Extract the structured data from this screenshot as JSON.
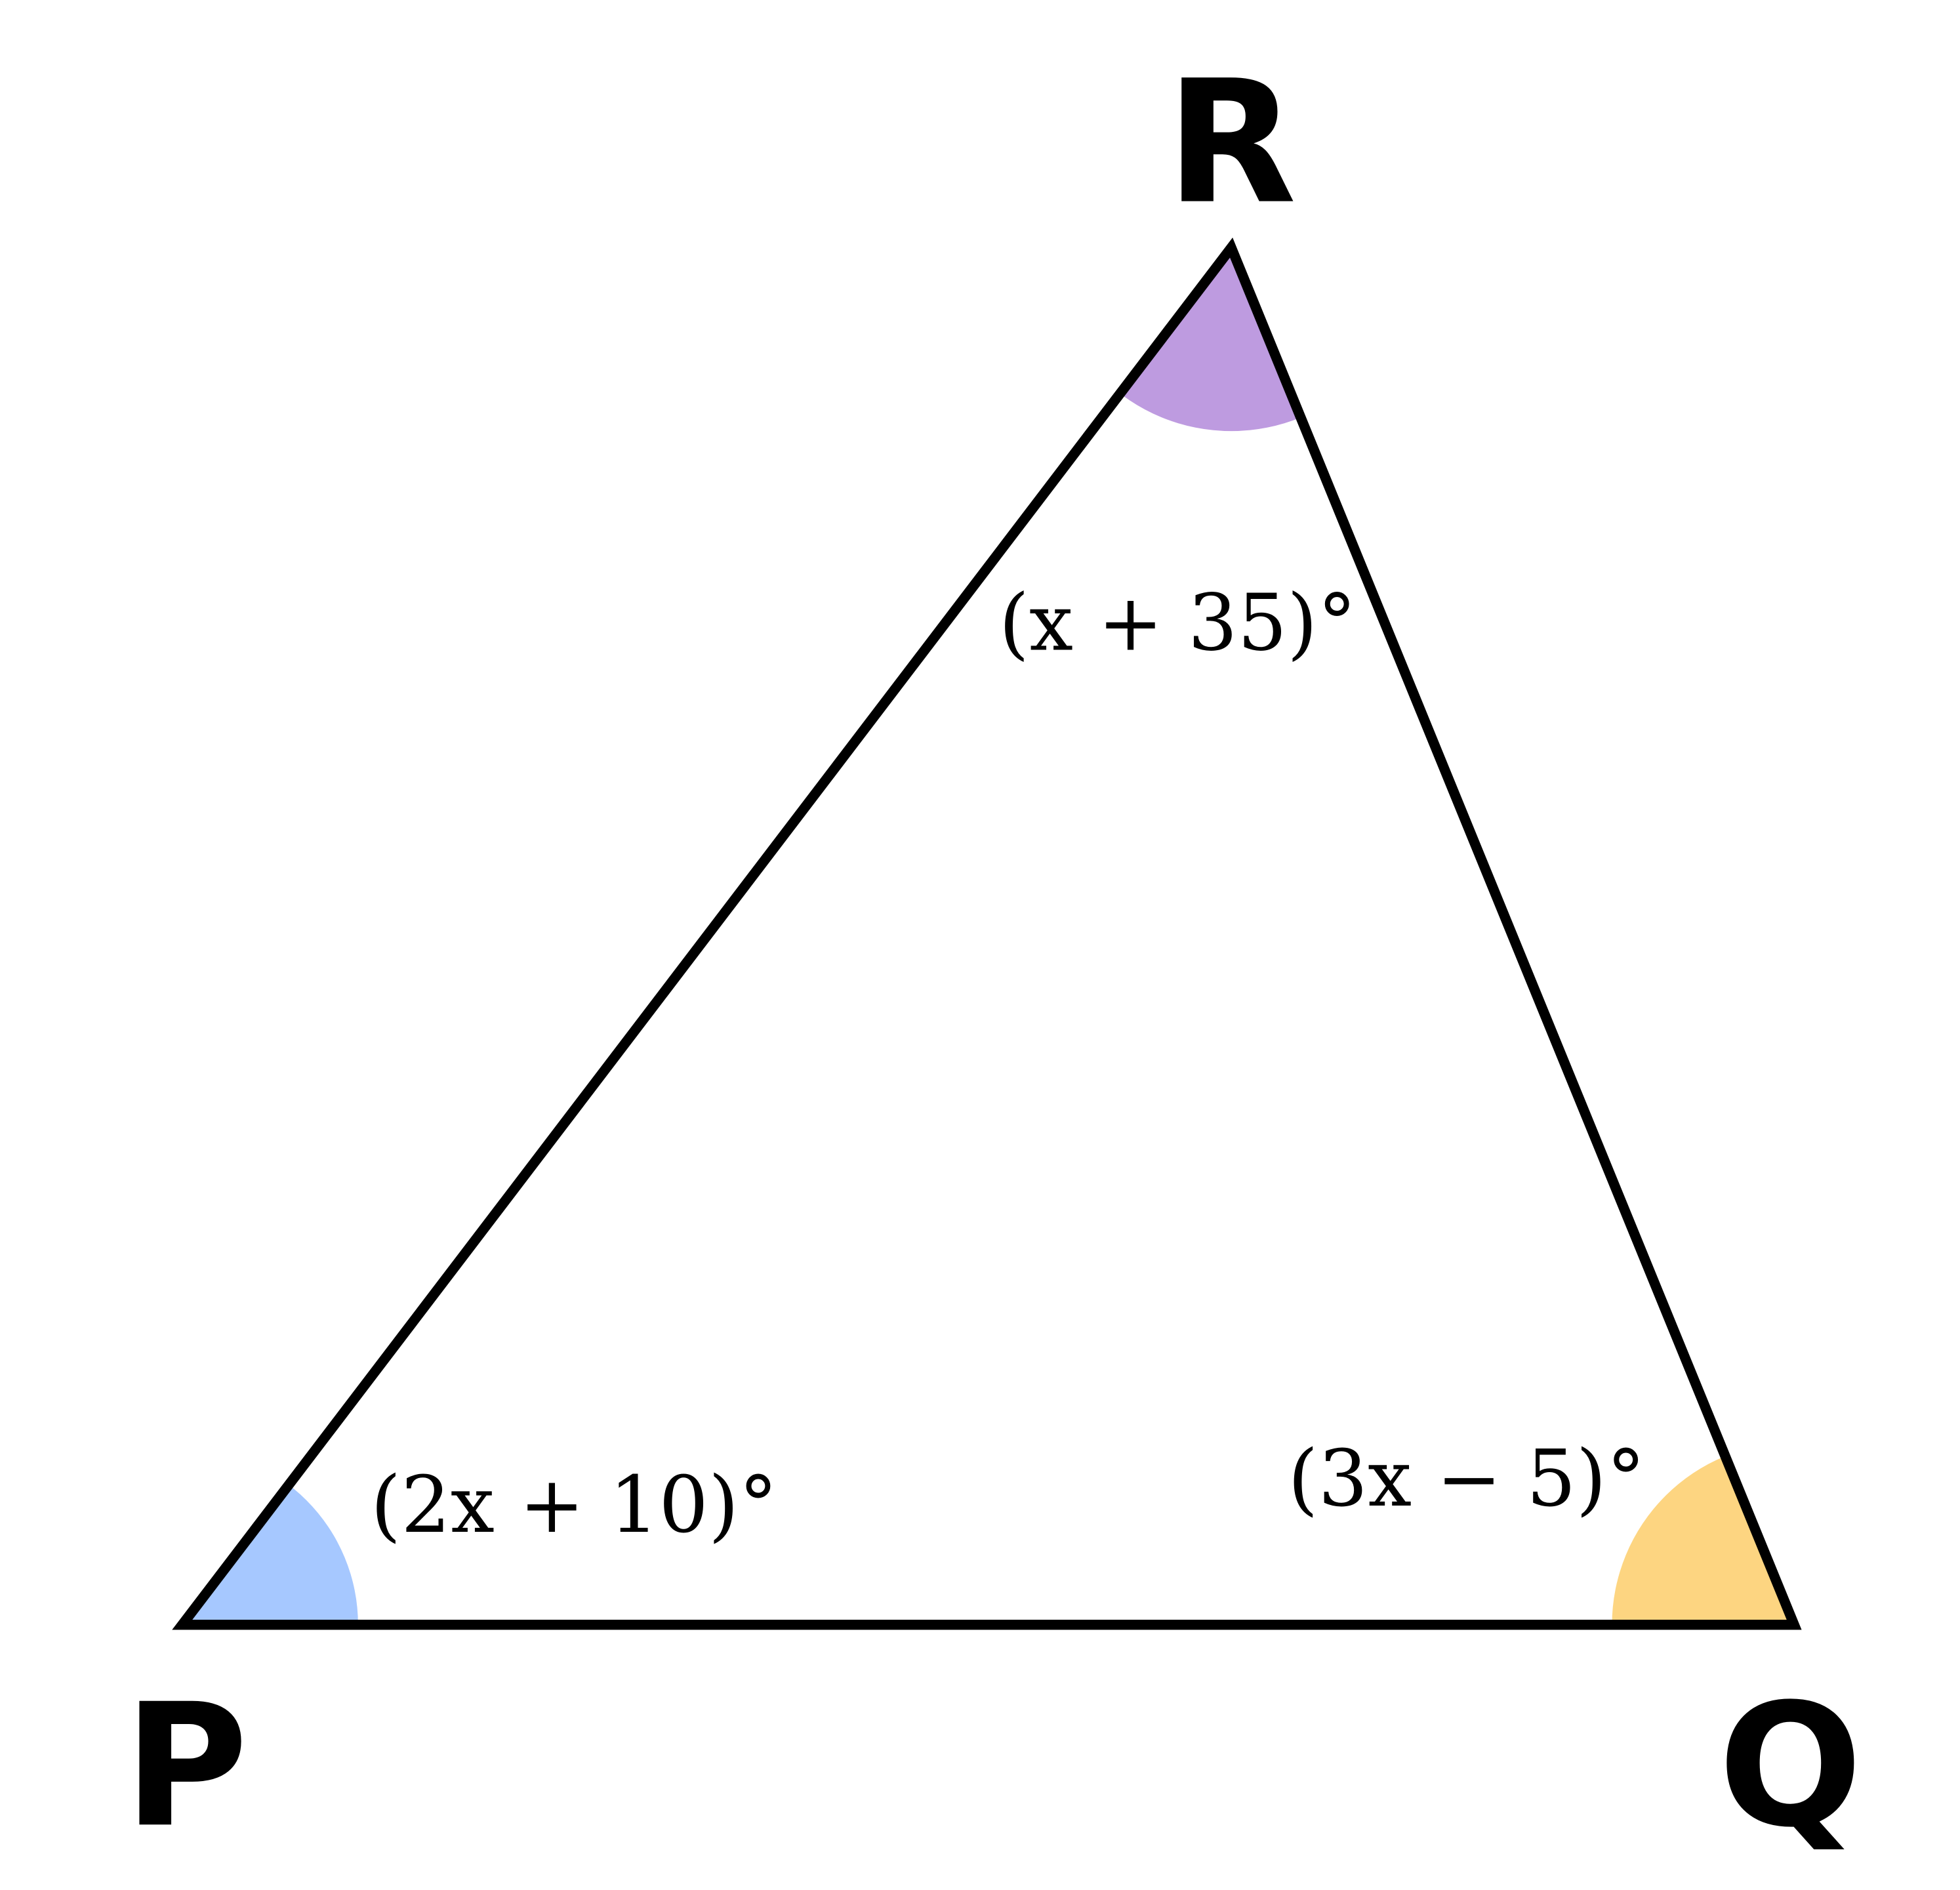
{
  "vertices": {
    "P": "P",
    "Q": "Q",
    "R": "R"
  },
  "angles": [
    {
      "vertex": "P",
      "label": "(2x + 10)°",
      "color": "#a6c8ff"
    },
    {
      "vertex": "Q",
      "label": "(3x − 5)°",
      "color": "#fdd581"
    },
    {
      "vertex": "R",
      "label": "(x + 35)°",
      "color": "#be9be0"
    }
  ],
  "stroke_color": "#000000"
}
